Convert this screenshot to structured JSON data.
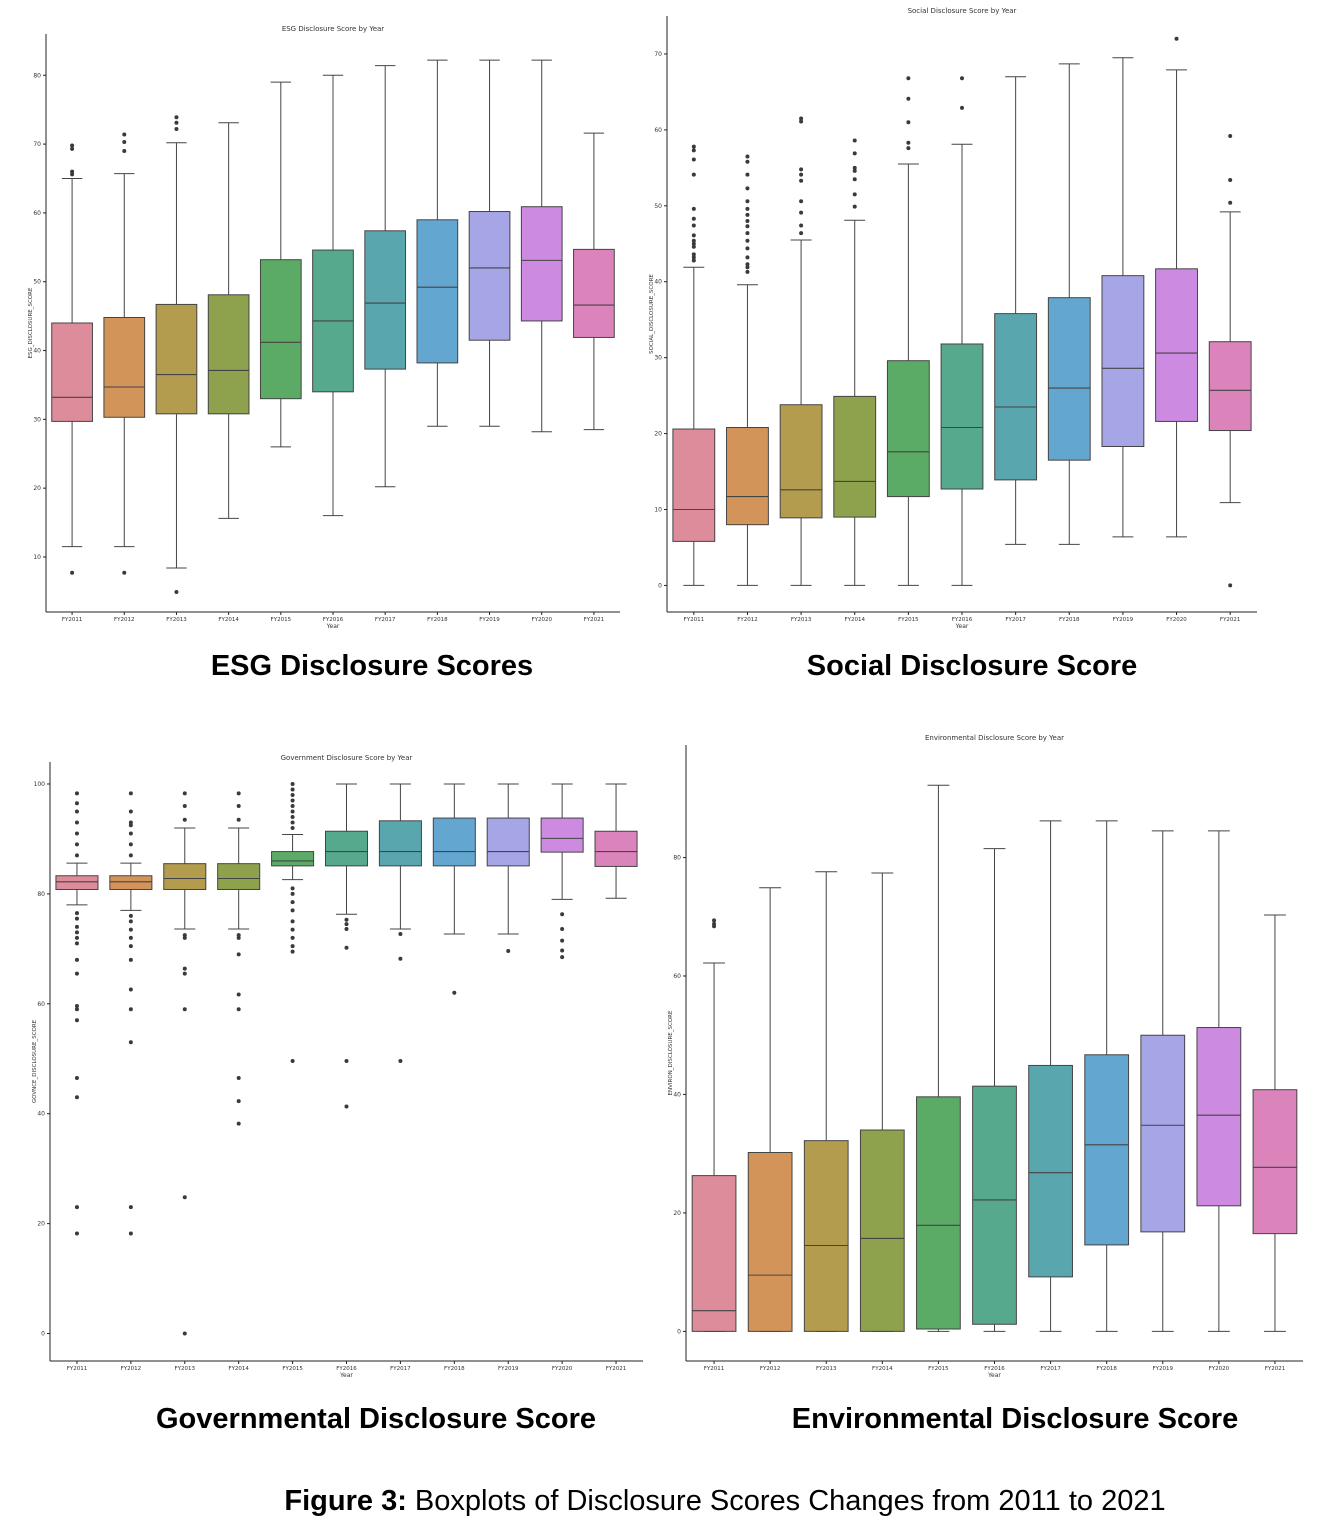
{
  "chart_data": [
    {
      "id": "esg",
      "type": "box",
      "title": "ESG Disclosure Score by Year",
      "xlabel": "Year",
      "ylabel": "ESG_DISCLOSURE_SCORE",
      "ylim": [
        2,
        86
      ],
      "yticks": [
        10,
        20,
        30,
        40,
        50,
        60,
        70,
        80
      ],
      "categories": [
        "FY2011",
        "FY2012",
        "FY2013",
        "FY2014",
        "FY2015",
        "FY2016",
        "FY2017",
        "FY2018",
        "FY2019",
        "FY2020",
        "FY2021"
      ],
      "boxes": [
        {
          "low": 11.5,
          "q1": 29.7,
          "median": 33.2,
          "q3": 44.0,
          "high": 65.0,
          "outliers": [
            7.7,
            65.6,
            66.0,
            69.3,
            69.8
          ]
        },
        {
          "low": 11.5,
          "q1": 30.3,
          "median": 34.7,
          "q3": 44.8,
          "high": 65.7,
          "outliers": [
            7.7,
            69.0,
            70.3,
            71.4
          ]
        },
        {
          "low": 8.4,
          "q1": 30.8,
          "median": 36.5,
          "q3": 46.7,
          "high": 70.2,
          "outliers": [
            4.9,
            72.2,
            73.1,
            73.9
          ]
        },
        {
          "low": 15.6,
          "q1": 30.8,
          "median": 37.1,
          "q3": 48.1,
          "high": 73.1,
          "outliers": []
        },
        {
          "low": 26.0,
          "q1": 33.0,
          "median": 41.2,
          "q3": 53.2,
          "high": 79.0,
          "outliers": []
        },
        {
          "low": 16.0,
          "q1": 34.0,
          "median": 44.3,
          "q3": 54.6,
          "high": 80.0,
          "outliers": []
        },
        {
          "low": 20.2,
          "q1": 37.3,
          "median": 46.9,
          "q3": 57.4,
          "high": 81.4,
          "outliers": []
        },
        {
          "low": 29.0,
          "q1": 38.2,
          "median": 49.2,
          "q3": 59.0,
          "high": 82.2,
          "outliers": []
        },
        {
          "low": 29.0,
          "q1": 41.5,
          "median": 52.0,
          "q3": 60.2,
          "high": 82.2,
          "outliers": []
        },
        {
          "low": 28.2,
          "q1": 44.3,
          "median": 53.1,
          "q3": 60.9,
          "high": 82.2,
          "outliers": []
        },
        {
          "low": 28.5,
          "q1": 41.9,
          "median": 46.6,
          "q3": 54.7,
          "high": 71.6,
          "outliers": []
        }
      ]
    },
    {
      "id": "social",
      "type": "box",
      "title": "Social Disclosure Score by Year",
      "xlabel": "Year",
      "ylabel": "SOCIAL_DISCLOSURE_SCORE",
      "ylim": [
        -3.5,
        75
      ],
      "yticks": [
        0,
        10,
        20,
        30,
        40,
        50,
        60,
        70
      ],
      "categories": [
        "FY2011",
        "FY2012",
        "FY2013",
        "FY2014",
        "FY2015",
        "FY2016",
        "FY2017",
        "FY2018",
        "FY2019",
        "FY2020",
        "FY2021"
      ],
      "boxes": [
        {
          "low": 0,
          "q1": 5.8,
          "median": 10.0,
          "q3": 20.6,
          "high": 41.9,
          "outliers": [
            42.8,
            43.2,
            43.6,
            44.6,
            45.0,
            45.4,
            46.1,
            47.4,
            48.3,
            49.6,
            54.1,
            56.1,
            57.3,
            57.8
          ]
        },
        {
          "low": 0,
          "q1": 8.0,
          "median": 11.7,
          "q3": 20.8,
          "high": 39.6,
          "outliers": [
            41.3,
            41.9,
            42.3,
            43.2,
            44.4,
            45.4,
            46.4,
            47.3,
            48.0,
            48.8,
            49.6,
            50.6,
            52.3,
            54.1,
            55.8,
            56.5
          ]
        },
        {
          "low": 0,
          "q1": 8.9,
          "median": 12.6,
          "q3": 23.8,
          "high": 45.5,
          "outliers": [
            46.4,
            47.4,
            49.1,
            50.6,
            53.3,
            54.1,
            54.8,
            61.1,
            61.5
          ]
        },
        {
          "low": 0,
          "q1": 9.0,
          "median": 13.7,
          "q3": 24.9,
          "high": 48.1,
          "outliers": [
            49.9,
            51.5,
            53.5,
            54.6,
            55.0,
            56.9,
            58.6
          ]
        },
        {
          "low": 0,
          "q1": 11.7,
          "median": 17.6,
          "q3": 29.6,
          "high": 55.5,
          "outliers": [
            57.6,
            58.3,
            61.0,
            64.1,
            66.8
          ]
        },
        {
          "low": 0,
          "q1": 12.7,
          "median": 20.8,
          "q3": 31.8,
          "high": 58.1,
          "outliers": [
            62.9,
            66.8
          ]
        },
        {
          "low": 5.4,
          "q1": 13.9,
          "median": 23.5,
          "q3": 35.8,
          "high": 67.0,
          "outliers": []
        },
        {
          "low": 5.4,
          "q1": 16.5,
          "median": 26.0,
          "q3": 37.9,
          "high": 68.7,
          "outliers": []
        },
        {
          "low": 6.4,
          "q1": 18.3,
          "median": 28.6,
          "q3": 40.8,
          "high": 69.5,
          "outliers": []
        },
        {
          "low": 6.4,
          "q1": 21.6,
          "median": 30.6,
          "q3": 41.7,
          "high": 67.9,
          "outliers": [
            72.0
          ]
        },
        {
          "low": 10.9,
          "q1": 20.4,
          "median": 25.7,
          "q3": 32.1,
          "high": 49.2,
          "outliers": [
            0.0,
            50.4,
            53.4,
            59.2
          ]
        }
      ]
    },
    {
      "id": "gov",
      "type": "box",
      "title": "Government Disclosure Score by Year",
      "xlabel": "Year",
      "ylabel": "GOVNCE_DISCLOSURE_SCORE",
      "ylim": [
        -5,
        104
      ],
      "yticks": [
        0,
        20,
        40,
        60,
        80,
        100
      ],
      "categories": [
        "FY2011",
        "FY2012",
        "FY2013",
        "FY2014",
        "FY2015",
        "FY2016",
        "FY2017",
        "FY2018",
        "FY2019",
        "FY2020",
        "FY2021"
      ],
      "boxes": [
        {
          "low": 78.0,
          "q1": 80.8,
          "median": 82.2,
          "q3": 83.3,
          "high": 85.6,
          "outliers": [
            18.2,
            23.0,
            43.0,
            46.5,
            57.0,
            59.0,
            59.6,
            65.5,
            68.0,
            71.0,
            72.0,
            73.0,
            74.0,
            75.5,
            76.5,
            87.0,
            89.0,
            91.0,
            93.0,
            95.0,
            96.5,
            98.3
          ]
        },
        {
          "low": 77.0,
          "q1": 80.8,
          "median": 82.2,
          "q3": 83.3,
          "high": 85.6,
          "outliers": [
            18.2,
            23.0,
            53.0,
            59.0,
            62.6,
            68.0,
            70.5,
            72.0,
            73.5,
            75.0,
            76.0,
            87.0,
            89.0,
            91.0,
            92.5,
            93.0,
            95.0,
            98.3
          ]
        },
        {
          "low": 73.6,
          "q1": 80.8,
          "median": 82.8,
          "q3": 85.5,
          "high": 92.0,
          "outliers": [
            0,
            24.8,
            59.0,
            65.5,
            66.4,
            72.0,
            72.5,
            93.5,
            96.0,
            98.3
          ]
        },
        {
          "low": 73.6,
          "q1": 80.8,
          "median": 82.8,
          "q3": 85.5,
          "high": 92.0,
          "outliers": [
            38.2,
            42.3,
            46.5,
            59.0,
            61.7,
            69.0,
            72.0,
            72.5,
            93.5,
            96.0,
            98.3
          ]
        },
        {
          "low": 82.6,
          "q1": 85.1,
          "median": 86.0,
          "q3": 87.7,
          "high": 90.8,
          "outliers": [
            49.6,
            69.5,
            70.5,
            72.0,
            73.5,
            75.0,
            77.0,
            78.5,
            80.0,
            81.0,
            92.0,
            93.0,
            94.0,
            95.0,
            96.0,
            97.0,
            98.0,
            99.0,
            100.0
          ]
        },
        {
          "low": 76.3,
          "q1": 85.1,
          "median": 87.7,
          "q3": 91.4,
          "high": 100.0,
          "outliers": [
            41.3,
            49.6,
            70.2,
            73.6,
            74.5,
            75.3
          ]
        },
        {
          "low": 73.6,
          "q1": 85.1,
          "median": 87.7,
          "q3": 93.3,
          "high": 100.0,
          "outliers": [
            49.6,
            68.2,
            72.7
          ]
        },
        {
          "low": 72.7,
          "q1": 85.1,
          "median": 87.7,
          "q3": 93.8,
          "high": 100.0,
          "outliers": [
            62.0
          ]
        },
        {
          "low": 72.7,
          "q1": 85.1,
          "median": 87.7,
          "q3": 93.8,
          "high": 100.0,
          "outliers": [
            69.6
          ]
        },
        {
          "low": 79.0,
          "q1": 87.6,
          "median": 90.1,
          "q3": 93.8,
          "high": 100.0,
          "outliers": [
            68.5,
            69.7,
            71.5,
            73.6,
            76.3
          ]
        },
        {
          "low": 79.2,
          "q1": 85.0,
          "median": 87.7,
          "q3": 91.4,
          "high": 100.0,
          "outliers": []
        }
      ]
    },
    {
      "id": "env",
      "type": "box",
      "title": "Environmental Disclosure Score by Year",
      "xlabel": "Year",
      "ylabel": "ENVIRON_DISCLOSURE_SCORE",
      "ylim": [
        -5,
        99
      ],
      "yticks": [
        0,
        20,
        40,
        60,
        80
      ],
      "categories": [
        "FY2011",
        "FY2012",
        "FY2013",
        "FY2014",
        "FY2015",
        "FY2016",
        "FY2017",
        "FY2018",
        "FY2019",
        "FY2020",
        "FY2021"
      ],
      "boxes": [
        {
          "low": 0,
          "q1": 0,
          "median": 3.5,
          "q3": 26.3,
          "high": 62.2,
          "outliers": [
            68.4,
            68.8,
            69.4
          ]
        },
        {
          "low": 0,
          "q1": 0,
          "median": 9.5,
          "q3": 30.2,
          "high": 74.9,
          "outliers": []
        },
        {
          "low": 0,
          "q1": 0,
          "median": 14.5,
          "q3": 32.2,
          "high": 77.6,
          "outliers": []
        },
        {
          "low": 0,
          "q1": 0,
          "median": 15.7,
          "q3": 34.0,
          "high": 77.4,
          "outliers": []
        },
        {
          "low": 0,
          "q1": 0.4,
          "median": 17.9,
          "q3": 39.6,
          "high": 92.2,
          "outliers": []
        },
        {
          "low": 0,
          "q1": 1.2,
          "median": 22.2,
          "q3": 41.4,
          "high": 81.5,
          "outliers": []
        },
        {
          "low": 0,
          "q1": 9.2,
          "median": 26.8,
          "q3": 44.9,
          "high": 86.2,
          "outliers": []
        },
        {
          "low": 0,
          "q1": 14.6,
          "median": 31.5,
          "q3": 46.7,
          "high": 86.2,
          "outliers": []
        },
        {
          "low": 0,
          "q1": 16.8,
          "median": 34.8,
          "q3": 50.0,
          "high": 84.5,
          "outliers": []
        },
        {
          "low": 0,
          "q1": 21.2,
          "median": 36.5,
          "q3": 51.3,
          "high": 84.5,
          "outliers": []
        },
        {
          "low": 0,
          "q1": 16.5,
          "median": 27.7,
          "q3": 40.8,
          "high": 70.3,
          "outliers": []
        }
      ]
    }
  ],
  "colors": [
    "#dc8c9a",
    "#d3945a",
    "#b39c4e",
    "#8ea24e",
    "#5baa66",
    "#56a98d",
    "#5aa6ae",
    "#63a6d0",
    "#a6a6e6",
    "#cc8ae0",
    "#db84bb"
  ],
  "captions": {
    "esg": "ESG Disclosure Scores",
    "social": "Social Disclosure Score",
    "gov": "Governmental Disclosure Score",
    "env": "Environmental Disclosure Score"
  },
  "figure": {
    "label": "Figure 3:",
    "text": " Boxplots of Disclosure Scores Changes from 2011 to 2021"
  }
}
